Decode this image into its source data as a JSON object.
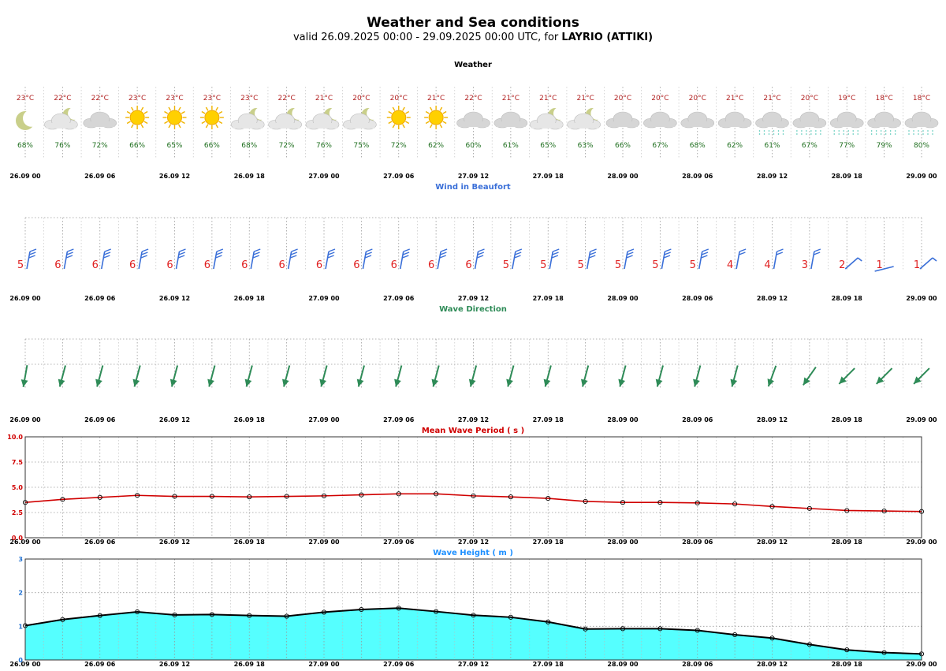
{
  "header": {
    "title": "Weather and Sea conditions",
    "subtitle_prefix": "valid 26.09.2025 00:00 - 29.09.2025 00:00 UTC, for",
    "location": "LAYRIO (ATTIKI)"
  },
  "x_tick_labels": [
    "26.09 00",
    "26.09 06",
    "26.09 12",
    "26.09 18",
    "27.09 00",
    "27.09 06",
    "27.09 12",
    "27.09 18",
    "28.09 00",
    "28.09 06",
    "28.09 12",
    "28.09 18",
    "29.09 00"
  ],
  "colors": {
    "temp_text": "#b22222",
    "humidity_text": "#1f6f1f",
    "wind_title": "#3a6fd8",
    "wind_barb": "#3a6fd8",
    "wind_number": "#e02020",
    "wave_dir_title": "#2e8b57",
    "wave_arrow": "#2e8b57",
    "period_title": "#d00000",
    "period_line": "#d00000",
    "height_title": "#1e90ff",
    "height_fill": "#55ffff",
    "height_line": "#000000"
  },
  "weather": {
    "title": "Weather",
    "temperatures": [
      "23°C",
      "22°C",
      "22°C",
      "23°C",
      "23°C",
      "23°C",
      "23°C",
      "22°C",
      "21°C",
      "20°C",
      "20°C",
      "21°C",
      "22°C",
      "21°C",
      "21°C",
      "21°C",
      "20°C",
      "20°C",
      "20°C",
      "21°C",
      "21°C",
      "20°C",
      "19°C",
      "18°C",
      "18°C"
    ],
    "humidity": [
      "68%",
      "76%",
      "72%",
      "66%",
      "65%",
      "66%",
      "68%",
      "72%",
      "76%",
      "75%",
      "72%",
      "62%",
      "60%",
      "61%",
      "65%",
      "63%",
      "66%",
      "67%",
      "68%",
      "62%",
      "61%",
      "67%",
      "77%",
      "79%",
      "80%"
    ],
    "icons": [
      "moon-icon",
      "cloud-moon-icon",
      "cloud-icon",
      "sun-icon",
      "sun-icon",
      "sun-icon",
      "cloud-moon-icon",
      "cloud-moon-icon",
      "cloud-moon-icon",
      "cloud-moon-icon",
      "sun-icon",
      "sun-icon",
      "cloud-icon",
      "cloud-icon",
      "cloud-moon-icon",
      "cloud-moon-icon",
      "cloud-icon",
      "cloud-icon",
      "cloud-icon",
      "cloud-icon",
      "rain-cloud-icon",
      "rain-cloud-icon",
      "rain-cloud-icon",
      "rain-cloud-icon",
      "rain-cloud-icon"
    ]
  },
  "wind": {
    "title": "Wind in Beaufort",
    "beaufort": [
      5,
      6,
      6,
      6,
      6,
      6,
      6,
      6,
      6,
      6,
      6,
      6,
      6,
      5,
      5,
      5,
      5,
      5,
      5,
      4,
      4,
      3,
      2,
      1,
      1
    ],
    "directions": [
      "N",
      "N",
      "N",
      "N",
      "N",
      "N",
      "N",
      "N",
      "N",
      "N",
      "N",
      "N",
      "N",
      "N",
      "N",
      "N",
      "N",
      "N",
      "N",
      "N",
      "N",
      "N",
      "NE",
      "SW",
      "NE"
    ]
  },
  "wave_direction": {
    "title": "Wave Direction",
    "to_directions_deg": [
      190,
      195,
      195,
      195,
      195,
      195,
      195,
      195,
      195,
      195,
      195,
      195,
      195,
      195,
      195,
      195,
      195,
      195,
      195,
      195,
      200,
      215,
      225,
      225,
      225
    ]
  },
  "chart_data": [
    {
      "type": "line",
      "title": "Mean Wave Period ( s )",
      "x": [
        "26.09 00",
        "26.09 03",
        "26.09 06",
        "26.09 09",
        "26.09 12",
        "26.09 15",
        "26.09 18",
        "26.09 21",
        "27.09 00",
        "27.09 03",
        "27.09 06",
        "27.09 09",
        "27.09 12",
        "27.09 15",
        "27.09 18",
        "27.09 21",
        "28.09 00",
        "28.09 03",
        "28.09 06",
        "28.09 09",
        "28.09 12",
        "28.09 15",
        "28.09 18",
        "28.09 21",
        "29.09 00"
      ],
      "values": [
        3.5,
        3.8,
        4.0,
        4.2,
        4.1,
        4.1,
        4.05,
        4.1,
        4.15,
        4.25,
        4.35,
        4.35,
        4.15,
        4.05,
        3.9,
        3.6,
        3.5,
        3.5,
        3.45,
        3.35,
        3.1,
        2.9,
        2.7,
        2.65,
        2.6
      ],
      "ylim": [
        0,
        10
      ],
      "y_tick_labels": [
        "0.0",
        "2.5",
        "5.0",
        "7.5",
        "10.0"
      ],
      "grid": true
    },
    {
      "type": "area",
      "title": "Wave Height ( m )",
      "x": [
        "26.09 00",
        "26.09 03",
        "26.09 06",
        "26.09 09",
        "26.09 12",
        "26.09 15",
        "26.09 18",
        "26.09 21",
        "27.09 00",
        "27.09 03",
        "27.09 06",
        "27.09 09",
        "27.09 12",
        "27.09 15",
        "27.09 18",
        "27.09 21",
        "28.09 00",
        "28.09 03",
        "28.09 06",
        "28.09 09",
        "28.09 12",
        "28.09 15",
        "28.09 18",
        "28.09 21",
        "29.09 00"
      ],
      "values": [
        1.02,
        1.2,
        1.32,
        1.43,
        1.34,
        1.35,
        1.32,
        1.3,
        1.42,
        1.5,
        1.54,
        1.44,
        1.33,
        1.27,
        1.13,
        0.92,
        0.93,
        0.93,
        0.88,
        0.75,
        0.65,
        0.46,
        0.3,
        0.22,
        0.18
      ],
      "ylim": [
        0,
        3
      ],
      "y_tick_labels": [
        "0",
        "1",
        "2",
        "3"
      ],
      "grid": true
    }
  ]
}
